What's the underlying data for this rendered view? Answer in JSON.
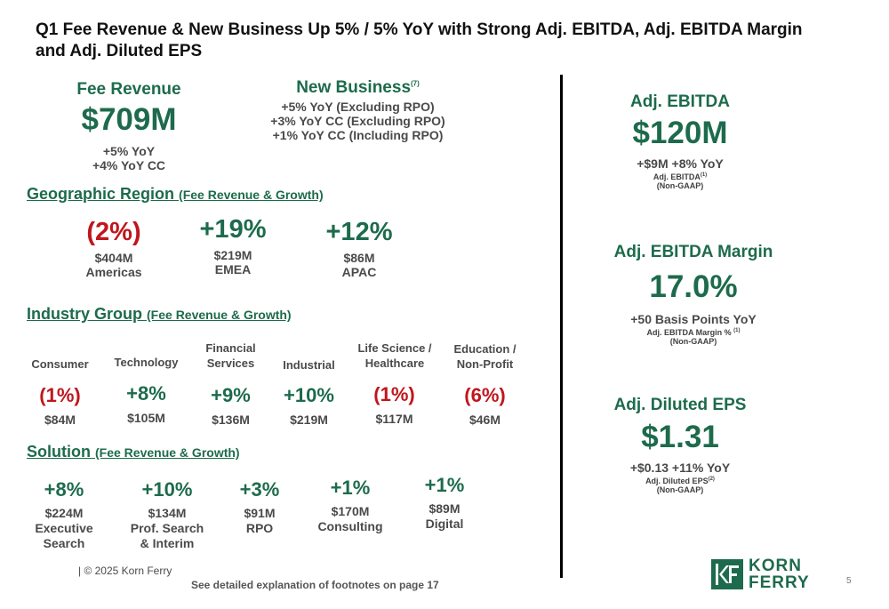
{
  "title": "Q1 Fee Revenue & New Business Up 5% / 5% YoY with Strong Adj. EBITDA, Adj. EBITDA Margin and Adj. Diluted EPS",
  "fee_revenue": {
    "label": "Fee Revenue",
    "value": "$709M",
    "line1": "+5% YoY",
    "line2": "+4% YoY CC"
  },
  "new_business": {
    "label": "New Business",
    "footnote": "(7)",
    "line1": "+5% YoY (Excluding RPO)",
    "line2": "+3% YoY CC (Excluding RPO)",
    "line3": "+1% YoY CC (Including RPO)"
  },
  "geo": {
    "title": "Geographic Region",
    "subtitle": "(Fee Revenue & Growth)",
    "items": [
      {
        "growth": "(2%)",
        "amount": "$404M",
        "name": "Americas"
      },
      {
        "growth": "+19%",
        "amount": "$219M",
        "name": "EMEA"
      },
      {
        "growth": "+12%",
        "amount": "$86M",
        "name": "APAC"
      }
    ]
  },
  "industry": {
    "title": "Industry Group",
    "subtitle": "(Fee Revenue & Growth)",
    "items": [
      {
        "name1": "",
        "name2": "Consumer",
        "growth": "(1%)",
        "amount": "$84M"
      },
      {
        "name1": "",
        "name2": "Technology",
        "growth": "+8%",
        "amount": "$105M"
      },
      {
        "name1": "Financial",
        "name2": "Services",
        "growth": "+9%",
        "amount": "$136M"
      },
      {
        "name1": "",
        "name2": "Industrial",
        "growth": "+10%",
        "amount": "$219M"
      },
      {
        "name1": "Life Science /",
        "name2": "Healthcare",
        "growth": "(1%)",
        "amount": "$117M"
      },
      {
        "name1": "Education /",
        "name2": "Non-Profit",
        "growth": "(6%)",
        "amount": "$46M"
      }
    ]
  },
  "solution": {
    "title": "Solution",
    "subtitle": "(Fee Revenue & Growth)",
    "items": [
      {
        "growth": "+8%",
        "amount": "$224M",
        "name1": "Executive",
        "name2": "Search"
      },
      {
        "growth": "+10%",
        "amount": "$134M",
        "name1": "Prof. Search",
        "name2": "& Interim"
      },
      {
        "growth": "+3%",
        "amount": "$91M",
        "name1": "RPO",
        "name2": ""
      },
      {
        "growth": "+1%",
        "amount": "$170M",
        "name1": "Consulting",
        "name2": ""
      },
      {
        "growth": "+1%",
        "amount": "$89M",
        "name1": "Digital",
        "name2": ""
      }
    ]
  },
  "ebitda": {
    "label": "Adj. EBITDA",
    "value": "$120M",
    "change": "+$9M +8% YoY",
    "note": "Adj. EBITDA",
    "note_fn": "(1)",
    "gaap": "(Non-GAAP)"
  },
  "margin": {
    "label": "Adj. EBITDA Margin",
    "value": "17.0%",
    "change": "+50 Basis Points YoY",
    "note": "Adj. EBITDA Margin %",
    "note_fn": "(1)",
    "gaap": "(Non-GAAP)"
  },
  "eps": {
    "label": "Adj. Diluted EPS",
    "value": "$1.31",
    "change": "+$0.13 +11% YoY",
    "note": "Adj. Diluted EPS",
    "note_fn": "(2)",
    "gaap": "(Non-GAAP)"
  },
  "footer": {
    "copyright": "| © 2025 Korn Ferry",
    "footnote_text": "See detailed explanation of footnotes on page 17",
    "logo_line1": "KORN",
    "logo_line2": "FERRY",
    "page_number": "5"
  },
  "colors": {
    "green": "#1d6b4c",
    "red": "#c0161d"
  }
}
